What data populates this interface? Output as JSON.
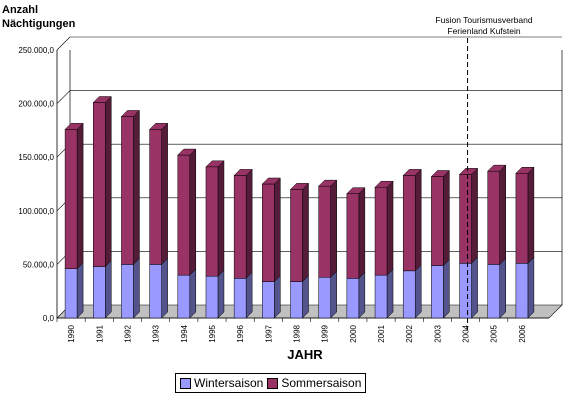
{
  "chart_data": {
    "type": "bar",
    "stacked": true,
    "three_d": true,
    "ylabel_lines": [
      "Anzahl",
      "Nächtigungen"
    ],
    "xlabel": "JAHR",
    "categories": [
      "1990",
      "1991",
      "1992",
      "1993",
      "1994",
      "1995",
      "1996",
      "1997",
      "1998",
      "1999",
      "2000",
      "2001",
      "2002",
      "2003",
      "2004",
      "2005",
      "2006"
    ],
    "yticks": [
      "0,0",
      "50.000,0",
      "100.000,0",
      "150.000,0",
      "200.000,0",
      "250.000,0"
    ],
    "ylim": [
      0,
      250000
    ],
    "series": [
      {
        "name": "Wintersaison",
        "color": "#9999ff",
        "values": [
          46000,
          48000,
          50000,
          50000,
          40000,
          39000,
          37000,
          34000,
          34000,
          38000,
          37000,
          40000,
          44000,
          49000,
          51000,
          50000,
          51000
        ]
      },
      {
        "name": "Sommersaison",
        "color": "#993366",
        "values": [
          130000,
          153000,
          138000,
          126000,
          112000,
          102000,
          96000,
          91000,
          86000,
          85000,
          79000,
          82000,
          89000,
          83000,
          83000,
          87000,
          84000
        ]
      }
    ],
    "annotation": {
      "lines": [
        "Fusion Tourismusverband",
        "Ferienland Kufstein"
      ],
      "at_category": "2004"
    },
    "legend_position": "bottom",
    "grid": true
  }
}
